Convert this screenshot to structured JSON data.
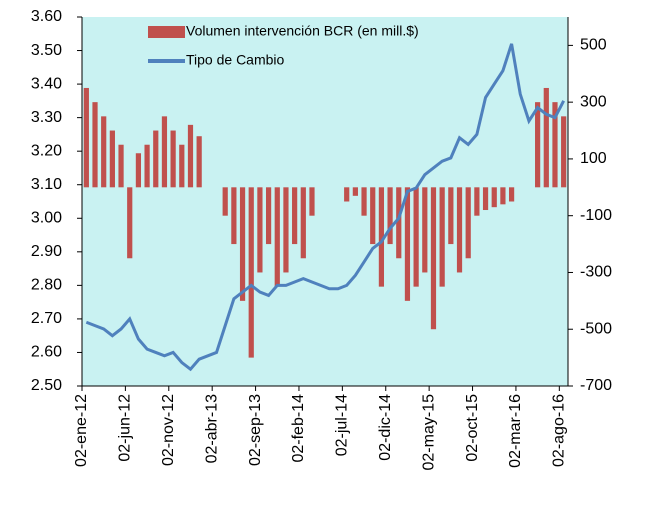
{
  "chart_data": {
    "type": "bar-line",
    "categories": [
      "02-ene-12",
      null,
      null,
      null,
      null,
      "02-jun-12",
      null,
      null,
      null,
      null,
      "02-nov-12",
      null,
      null,
      null,
      null,
      "02-abr-13",
      null,
      null,
      null,
      null,
      "02-sep-13",
      null,
      null,
      null,
      null,
      "02-feb-14",
      null,
      null,
      null,
      null,
      "02-jul-14",
      null,
      null,
      null,
      null,
      "02-dic-14",
      null,
      null,
      null,
      null,
      "02-may-15",
      null,
      null,
      null,
      null,
      "02-oct-15",
      null,
      null,
      null,
      null,
      "02-mar-16",
      null,
      null,
      null,
      null,
      "02-ago-16"
    ],
    "series": [
      {
        "name": "Volumen intervención BCR (en mill.$)",
        "color": "#c0504d",
        "axis": "y2",
        "kind": "bar",
        "values": [
          350,
          300,
          250,
          200,
          150,
          -250,
          120,
          150,
          200,
          250,
          200,
          150,
          220,
          180,
          0,
          0,
          -100,
          -200,
          -400,
          -600,
          -300,
          -200,
          -350,
          -300,
          -200,
          -250,
          -100,
          0,
          0,
          0,
          -50,
          -30,
          -100,
          -200,
          -350,
          -200,
          -250,
          -400,
          -350,
          -300,
          -500,
          -350,
          -200,
          -300,
          -250,
          -100,
          -80,
          -70,
          -60,
          -50,
          0,
          0,
          300,
          350,
          300,
          250
        ]
      },
      {
        "name": "Tipo de Cambio",
        "color": "#4f81bd",
        "axis": "y",
        "kind": "line",
        "values": [
          2.69,
          2.68,
          2.67,
          2.65,
          2.67,
          2.7,
          2.64,
          2.61,
          2.6,
          2.59,
          2.6,
          2.57,
          2.55,
          2.58,
          2.59,
          2.6,
          2.68,
          2.76,
          2.78,
          2.8,
          2.78,
          2.77,
          2.8,
          2.8,
          2.81,
          2.82,
          2.81,
          2.8,
          2.79,
          2.79,
          2.8,
          2.83,
          2.87,
          2.91,
          2.93,
          2.97,
          3.0,
          3.08,
          3.09,
          3.13,
          3.15,
          3.17,
          3.18,
          3.24,
          3.22,
          3.25,
          3.36,
          3.4,
          3.44,
          3.52,
          3.37,
          3.29,
          3.33,
          3.31,
          3.3,
          3.35
        ]
      }
    ],
    "ylim": [
      2.5,
      3.6
    ],
    "yticks": [
      {
        "value": 2.5,
        "label": "2.50"
      },
      {
        "value": 2.6,
        "label": "2.60"
      },
      {
        "value": 2.7,
        "label": "2.70"
      },
      {
        "value": 2.8,
        "label": "2.80"
      },
      {
        "value": 2.9,
        "label": "2.90"
      },
      {
        "value": 3.0,
        "label": "3.00"
      },
      {
        "value": 3.1,
        "label": "3.10"
      },
      {
        "value": 3.2,
        "label": "3.20"
      },
      {
        "value": 3.3,
        "label": "3.30"
      },
      {
        "value": 3.4,
        "label": "3.40"
      },
      {
        "value": 3.5,
        "label": "3.50"
      },
      {
        "value": 3.6,
        "label": "3.60"
      }
    ],
    "y2lim": [
      -700,
      600
    ],
    "y2ticks": [
      -700,
      -500,
      -300,
      -100,
      100,
      300,
      500
    ],
    "background": "#c9f2f2"
  }
}
